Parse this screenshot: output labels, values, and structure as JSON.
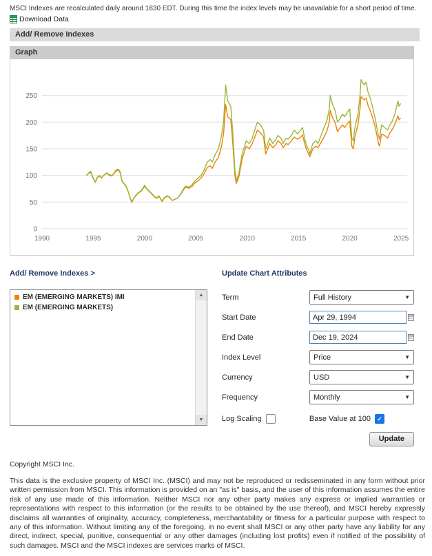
{
  "colors": {
    "series_imi_orange": "#ef8200",
    "series_em_green": "#9cb53b",
    "checkbox_checked_blue": "#1a73e8",
    "panel_title_navy": "#1f3864"
  },
  "icons": {
    "dropdown_arrow": "▼",
    "scroll_up": "▲",
    "scroll_down": "▼",
    "checkmark": "✓"
  },
  "page": {
    "notice": "MSCI Indexes are recalculated daily around 1830 EDT. During this time the index levels may be unavailable for a short period of time.",
    "download_link": "Download Data"
  },
  "sections": {
    "add_remove_header": "Add/ Remove Indexes",
    "graph_header": "Graph"
  },
  "chart_data": {
    "type": "line",
    "title": "",
    "xlabel": "",
    "ylabel": "",
    "xlim": [
      1990,
      2025.6
    ],
    "ylim": [
      0,
      300
    ],
    "x_ticks": [
      1990,
      1995,
      2000,
      2005,
      2010,
      2015,
      2020,
      2025
    ],
    "y_ticks": [
      0,
      50,
      100,
      150,
      200,
      250
    ],
    "grid": "horizontal",
    "legend_position": "none (series listed in Add/Remove Indexes listbox)",
    "x_years": [
      1994.33,
      1994.5,
      1994.75,
      1994.9,
      1995.0,
      1995.2,
      1995.4,
      1995.6,
      1995.8,
      1996.0,
      1996.3,
      1996.5,
      1996.8,
      1997.0,
      1997.2,
      1997.4,
      1997.6,
      1997.8,
      1998.0,
      1998.2,
      1998.4,
      1998.6,
      1998.75,
      1998.9,
      1999.1,
      1999.4,
      1999.7,
      2000.0,
      2000.1,
      2000.3,
      2000.5,
      2000.8,
      2001.0,
      2001.2,
      2001.4,
      2001.7,
      2001.9,
      2002.2,
      2002.4,
      2002.7,
      2002.9,
      2003.2,
      2003.5,
      2003.8,
      2004.0,
      2004.3,
      2004.6,
      2004.9,
      2005.2,
      2005.5,
      2005.8,
      2006.1,
      2006.4,
      2006.6,
      2006.9,
      2007.2,
      2007.5,
      2007.7,
      2007.9,
      2008.1,
      2008.4,
      2008.6,
      2008.8,
      2008.95,
      2009.2,
      2009.5,
      2009.9,
      2010.2,
      2010.5,
      2010.9,
      2011.0,
      2011.3,
      2011.6,
      2011.8,
      2012.0,
      2012.2,
      2012.5,
      2012.8,
      2013.0,
      2013.3,
      2013.5,
      2013.8,
      2014.0,
      2014.3,
      2014.6,
      2014.9,
      2015.2,
      2015.4,
      2015.6,
      2015.8,
      2016.0,
      2016.1,
      2016.4,
      2016.7,
      2016.9,
      2017.2,
      2017.5,
      2017.8,
      2018.0,
      2018.1,
      2018.3,
      2018.6,
      2018.8,
      2019.0,
      2019.3,
      2019.5,
      2019.8,
      2020.0,
      2020.2,
      2020.35,
      2020.5,
      2020.8,
      2021.0,
      2021.1,
      2021.4,
      2021.6,
      2021.8,
      2022.0,
      2022.2,
      2022.5,
      2022.8,
      2022.9,
      2023.1,
      2023.4,
      2023.7,
      2023.9,
      2024.1,
      2024.4,
      2024.7,
      2024.8,
      2024.96
    ],
    "series": [
      {
        "name": "EM (EMERGING MARKETS) IMI",
        "color": "#ef8200",
        "values": [
          100,
          103,
          106,
          99,
          94,
          87,
          96,
          99,
          95,
          100,
          104,
          101,
          99,
          103,
          108,
          110,
          106,
          89,
          84,
          79,
          69,
          57,
          49,
          55,
          61,
          67,
          71,
          80,
          77,
          73,
          69,
          63,
          59,
          57,
          61,
          51,
          57,
          61,
          59,
          53,
          55,
          57,
          64,
          73,
          78,
          76,
          79,
          86,
          90,
          95,
          103,
          115,
          118,
          113,
          126,
          134,
          155,
          178,
          233,
          210,
          205,
          160,
          100,
          85,
          98,
          130,
          155,
          150,
          160,
          180,
          185,
          180,
          172,
          140,
          150,
          160,
          152,
          158,
          165,
          160,
          152,
          160,
          158,
          165,
          172,
          168,
          172,
          176,
          160,
          148,
          140,
          135,
          150,
          155,
          152,
          162,
          172,
          185,
          200,
          222,
          210,
          198,
          182,
          188,
          195,
          190,
          198,
          202,
          155,
          150,
          172,
          195,
          225,
          248,
          242,
          245,
          230,
          222,
          210,
          190,
          160,
          155,
          178,
          175,
          170,
          180,
          185,
          196,
          212,
          205,
          208
        ]
      },
      {
        "name": "EM (EMERGING MARKETS)",
        "color": "#9cb53b",
        "values": [
          100,
          104,
          108,
          100,
          95,
          88,
          97,
          100,
          96,
          100,
          105,
          102,
          100,
          104,
          110,
          112,
          108,
          90,
          85,
          80,
          70,
          58,
          50,
          56,
          62,
          68,
          72,
          82,
          78,
          74,
          70,
          64,
          60,
          58,
          62,
          52,
          58,
          62,
          60,
          53,
          55,
          57,
          65,
          75,
          80,
          78,
          82,
          90,
          95,
          100,
          110,
          125,
          130,
          125,
          140,
          150,
          175,
          200,
          270,
          240,
          230,
          180,
          110,
          90,
          105,
          140,
          165,
          160,
          170,
          195,
          200,
          195,
          185,
          150,
          160,
          170,
          160,
          168,
          175,
          170,
          160,
          170,
          168,
          175,
          185,
          178,
          185,
          190,
          170,
          155,
          148,
          140,
          160,
          165,
          160,
          175,
          190,
          205,
          225,
          250,
          235,
          220,
          200,
          205,
          215,
          210,
          220,
          225,
          170,
          165,
          190,
          215,
          250,
          280,
          270,
          275,
          255,
          245,
          230,
          205,
          175,
          168,
          195,
          190,
          185,
          195,
          200,
          215,
          240,
          230,
          235
        ]
      }
    ]
  },
  "panel": {
    "add_remove_label": "Add/ Remove Indexes >",
    "update_attributes_label": "Update Chart Attributes",
    "indexes": [
      {
        "label": "EM (EMERGING MARKETS) IMI",
        "color": "#ef8200"
      },
      {
        "label": "EM (EMERGING MARKETS)",
        "color": "#9cb53b"
      }
    ],
    "form": {
      "term": {
        "label": "Term",
        "value": "Full History"
      },
      "start_date": {
        "label": "Start Date",
        "value": "Apr 29, 1994"
      },
      "end_date": {
        "label": "End Date",
        "value": "Dec 19, 2024"
      },
      "index_level": {
        "label": "Index Level",
        "value": "Price"
      },
      "currency": {
        "label": "Currency",
        "value": "USD"
      },
      "frequency": {
        "label": "Frequency",
        "value": "Monthly"
      },
      "log_scaling_label": "Log Scaling",
      "log_scaling_checked": false,
      "base_value_label": "Base Value at 100",
      "base_value_checked": true,
      "update_button": "Update"
    }
  },
  "footer": {
    "copyright": "Copyright MSCI Inc.",
    "disclaimer": "This data is the exclusive property of MSCI Inc. (MSCI) and may not be reproduced or redisseminated in any form without prior written permission from MSCI. This information is provided on an \"as is\" basis, and the user of this information assumes the entire risk of any use made of this information. Neither MSCI nor any other party makes any express or implied warranties or representations with respect to this information (or the results to be obtained by the use thereof), and MSCI hereby expressly disclaims all warranties of originality, accuracy, completeness, merchantability or fitness for a particular purpose with respect to any of this information. Without limiting any of the foregoing, in no event shall MSCI or any other party have any liability for any direct, indirect, special, punitive, consequential or any other damages (including lost profits) even if notified of the possibility of such damages. MSCI and the MSCI indexes are services marks of MSCI."
  }
}
